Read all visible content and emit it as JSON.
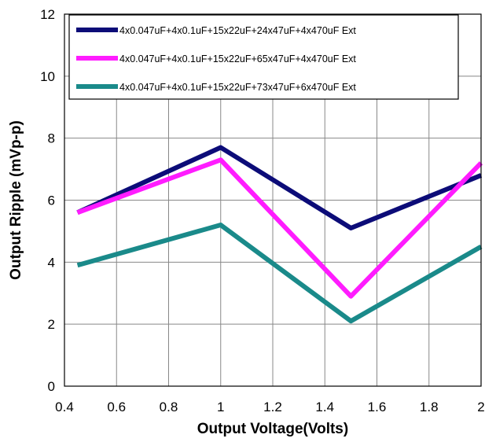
{
  "chart_data": {
    "type": "line",
    "title": "",
    "xlabel": "Output Voltage(Volts)",
    "ylabel": "Output Ripple (mVp-p)",
    "xlim": [
      0.4,
      2.0
    ],
    "ylim": [
      0,
      12
    ],
    "xticks": [
      "0.4",
      "0.6",
      "0.8",
      "1",
      "1.2",
      "1.4",
      "1.6",
      "1.8",
      "2"
    ],
    "yticks": [
      "0",
      "2",
      "4",
      "6",
      "8",
      "10",
      "12"
    ],
    "grid": true,
    "legend_position": "top-right",
    "x": [
      0.45,
      1.0,
      1.5,
      2.0
    ],
    "series": [
      {
        "name": "4x0.047uF+4x0.1uF+15x22uF+24x47uF+4x470uF Ext",
        "color": "#0c0c78",
        "values": [
          5.6,
          7.7,
          5.1,
          6.8
        ]
      },
      {
        "name": "4x0.047uF+4x0.1uF+15x22uF+65x47uF+4x470uF Ext",
        "color": "#ff1cff",
        "values": [
          5.6,
          7.3,
          2.9,
          7.2
        ]
      },
      {
        "name": "4x0.047uF+4x0.1uF+15x22uF+73x47uF+6x470uF Ext",
        "color": "#1a8a8a",
        "values": [
          3.9,
          5.2,
          2.1,
          4.5
        ]
      }
    ]
  }
}
